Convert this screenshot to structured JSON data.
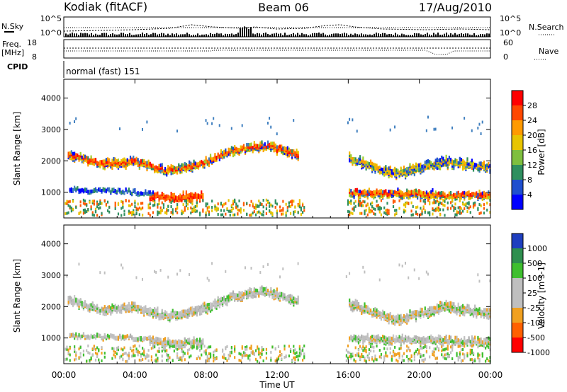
{
  "header": {
    "title": "Kodiak (fitACF)",
    "beam": "Beam 06",
    "date": "17/Aug/2010"
  },
  "top_panels": {
    "nsky_label": "N.Sky",
    "nsearch_label": "N.Search",
    "nsky_ticks": [
      "10^5",
      "10^0"
    ],
    "nsearch_ticks": [
      "10^5",
      "10^0"
    ],
    "freq_label": "Freq.",
    "freq_unit": "[MHz]",
    "freq_ticks": [
      "18",
      "8"
    ],
    "nave_label": "Nave",
    "nave_ticks": [
      "60",
      "0"
    ],
    "cpid_label": "CPID",
    "cpid_text": "normal (fast) 151"
  },
  "chart_data": [
    {
      "type": "heatmap",
      "quantity": "Power",
      "ylabel": "Slant Range [km]",
      "ylim": [
        180,
        4600
      ],
      "yticks": [
        1000,
        2000,
        3000,
        4000
      ],
      "xlim": [
        0,
        24
      ],
      "colorbar_label": "Power [dB]",
      "colorbar_ticks": [
        "28",
        "24",
        "20",
        "16",
        "12",
        "8",
        "4"
      ],
      "colorbar_colors": [
        "#ff0000",
        "#ff4800",
        "#ff9a00",
        "#e8c400",
        "#7fbf3f",
        "#2f8f5f",
        "#1f4fcf",
        "#0000ff"
      ],
      "features": [
        {
          "t0": 0.2,
          "t1": 13.2,
          "r": [
            2250,
            1900,
            2000,
            1700,
            1900,
            2350,
            2500,
            2200
          ],
          "w": 220,
          "level": "med-high"
        },
        {
          "t0": 4.8,
          "t1": 7.8,
          "r": [
            900,
            850,
            900
          ],
          "w": 200,
          "level": "high"
        },
        {
          "t0": 0.3,
          "t1": 5.0,
          "r": [
            1100,
            1000
          ],
          "w": 90,
          "level": "low"
        },
        {
          "t0": 16.0,
          "t1": 24.0,
          "r": [
            2100,
            1600,
            2000,
            1800
          ],
          "w": 250,
          "level": "mixed"
        },
        {
          "t0": 16.0,
          "t1": 24.0,
          "r": [
            1000,
            900
          ],
          "w": 200,
          "level": "med-high"
        }
      ]
    },
    {
      "type": "heatmap",
      "quantity": "Velocity",
      "ylabel": "Slant Range [km]",
      "ylim": [
        180,
        4600
      ],
      "yticks": [
        1000,
        2000,
        3000,
        4000
      ],
      "xlim": [
        0,
        24
      ],
      "xlabel": "Time UT",
      "xticks": [
        "00:00",
        "04:00",
        "08:00",
        "12:00",
        "16:00",
        "20:00",
        "00:00"
      ],
      "colorbar_label": "Velocity [m s-1]",
      "colorbar_ticks": [
        "1000",
        "500",
        "100",
        "25",
        "-25",
        "-100",
        "-500",
        "-1000"
      ],
      "colorbar_colors": [
        "#1f3fbf",
        "#2f8f4f",
        "#3fbf2f",
        "#bfbfbf",
        "#bfbfbf",
        "#f0a020",
        "#ff6000",
        "#ff0000"
      ]
    }
  ]
}
